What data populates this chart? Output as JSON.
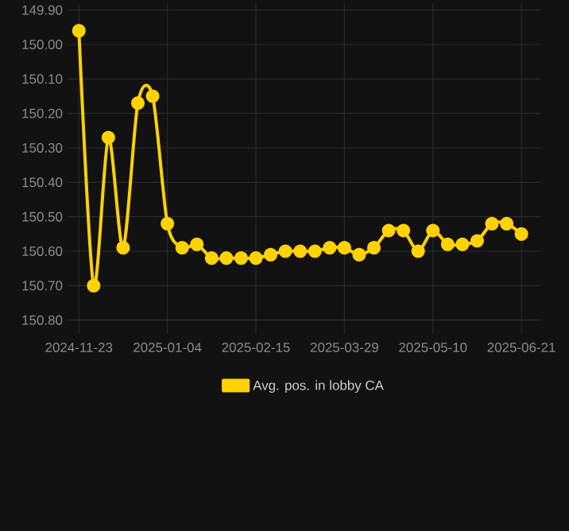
{
  "chart_data": {
    "type": "line",
    "x": [
      "2024-11-23",
      "2024-11-30",
      "2024-12-07",
      "2024-12-14",
      "2024-12-21",
      "2024-12-28",
      "2025-01-04",
      "2025-01-11",
      "2025-01-18",
      "2025-01-25",
      "2025-02-01",
      "2025-02-08",
      "2025-02-15",
      "2025-02-22",
      "2025-03-01",
      "2025-03-08",
      "2025-03-15",
      "2025-03-22",
      "2025-03-29",
      "2025-04-05",
      "2025-04-12",
      "2025-04-19",
      "2025-04-26",
      "2025-05-03",
      "2025-05-10",
      "2025-05-17",
      "2025-05-24",
      "2025-05-31",
      "2025-06-07",
      "2025-06-14",
      "2025-06-21"
    ],
    "series": [
      {
        "name": "Avg. pos. in lobby CA",
        "color": "#ffd200",
        "values": [
          149.96,
          150.7,
          150.27,
          150.59,
          150.17,
          150.15,
          150.52,
          150.59,
          150.58,
          150.62,
          150.62,
          150.62,
          150.62,
          150.61,
          150.6,
          150.6,
          150.6,
          150.59,
          150.59,
          150.61,
          150.59,
          150.54,
          150.54,
          150.6,
          150.54,
          150.58,
          150.58,
          150.57,
          150.52,
          150.52,
          150.55
        ]
      }
    ],
    "xlim": [
      "2024-11-18",
      "2025-06-30"
    ],
    "xticks": [
      "2024-11-23",
      "2025-01-04",
      "2025-02-15",
      "2025-03-29",
      "2025-05-10",
      "2025-06-21"
    ],
    "ylim": [
      150.84,
      149.88
    ],
    "yticks": [
      {
        "value": 149.9,
        "label": "149.90"
      },
      {
        "value": 150.0,
        "label": "150.00"
      },
      {
        "value": 150.1,
        "label": "150.10"
      },
      {
        "value": 150.2,
        "label": "150.20"
      },
      {
        "value": 150.3,
        "label": "150.30"
      },
      {
        "value": 150.4,
        "label": "150.40"
      },
      {
        "value": 150.5,
        "label": "150.50"
      },
      {
        "value": 150.6,
        "label": "150.60"
      },
      {
        "value": 150.7,
        "label": "150.70"
      },
      {
        "value": 150.8,
        "label": "150.80"
      }
    ],
    "grid": true,
    "legend": "bottom",
    "marker": "circle",
    "line_style": "solid"
  }
}
